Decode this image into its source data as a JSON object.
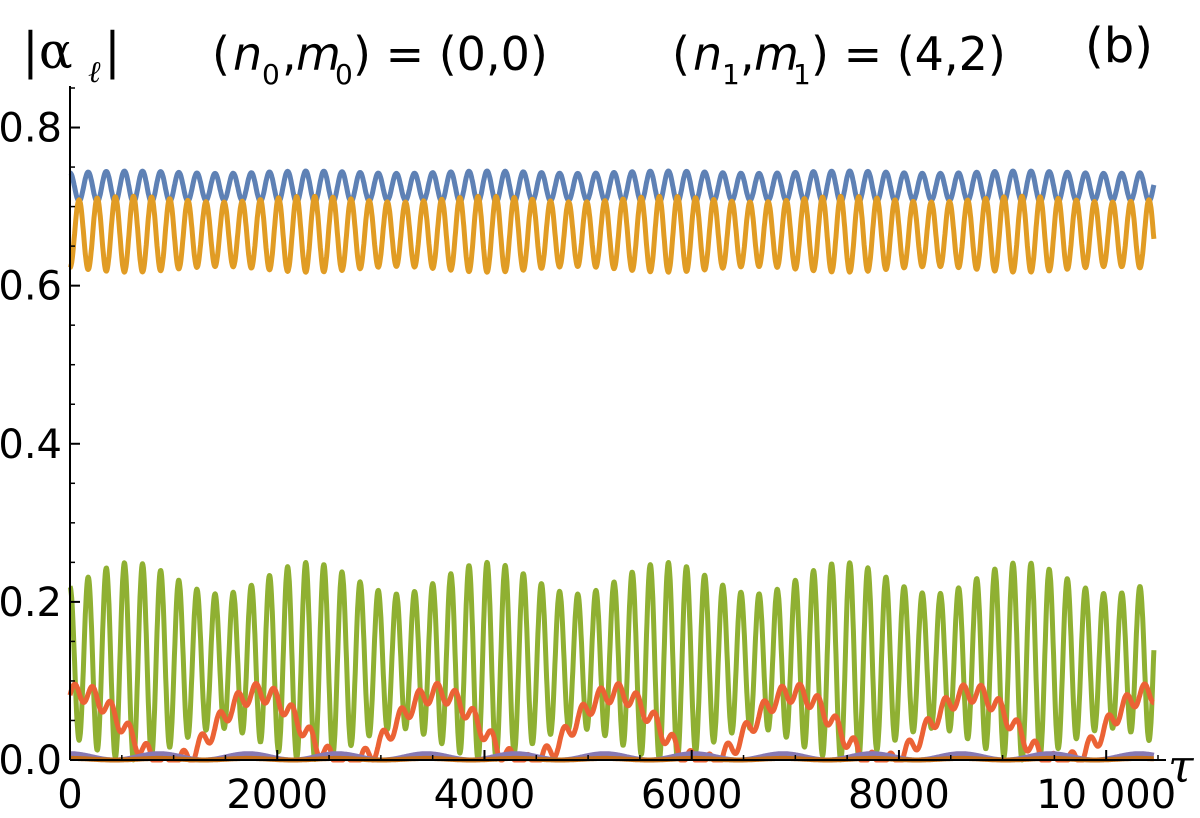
{
  "chart_data": {
    "type": "line",
    "title_parts": {
      "ylabel": "|α",
      "ylabel_sub": "ℓ",
      "ylabel_close": "|",
      "mode0_prefix": "(",
      "n0": "n",
      "n0_sub": "0",
      "comma0": ",",
      "m0": "m",
      "m0_sub": "0",
      "mode0_value": ") = (0,0)",
      "mode1_prefix": "(",
      "n1": "n",
      "n1_sub": "1",
      "comma1": ",",
      "m1": "m",
      "m1_sub": "1",
      "mode1_value": ") = (4,2)",
      "panel": "(b)"
    },
    "xlabel": "τ",
    "xlim": [
      0,
      10500
    ],
    "ylim": [
      0,
      0.85
    ],
    "x_ticks": [
      0,
      2000,
      4000,
      6000,
      8000,
      10000
    ],
    "x_tick_labels": [
      "0",
      "2000",
      "4000",
      "6000",
      "8000",
      "10 000"
    ],
    "y_ticks": [
      0.0,
      0.2,
      0.4,
      0.6,
      0.8
    ],
    "y_tick_labels": [
      "0.0",
      "0.2",
      "0.4",
      "0.6",
      "0.8"
    ],
    "grid": false,
    "series": [
      {
        "color": "#5e81b5",
        "mean": 0.725,
        "amplitude": 0.02,
        "period": 175,
        "envelope_period": 1720,
        "envelope_depth": 0.15,
        "phase": 0.0
      },
      {
        "color": "#e19c24",
        "mean": 0.665,
        "amplitude": 0.048,
        "period": 175,
        "envelope_period": 1720,
        "envelope_depth": 0.15,
        "phase": 3.14159
      },
      {
        "color": "#8fb032",
        "mean": 0.125,
        "amplitude": 0.125,
        "period": 175,
        "envelope_period": 1720,
        "envelope_depth": 0.32,
        "phase": 0.0
      },
      {
        "color": "#eb6235",
        "mean": 0.04,
        "amplitude": 0.045,
        "period": 1720,
        "ripple_amplitude": 0.012,
        "ripple_period": 175,
        "phase": 1.2
      },
      {
        "color": "#8778b3",
        "mean": 0.004,
        "amplitude": 0.004,
        "period": 860,
        "phase": 0.0
      },
      {
        "color": "#c56e1a",
        "mean": 0.001,
        "amplitude": 0.001,
        "period": 860,
        "phase": 0.0
      }
    ]
  }
}
